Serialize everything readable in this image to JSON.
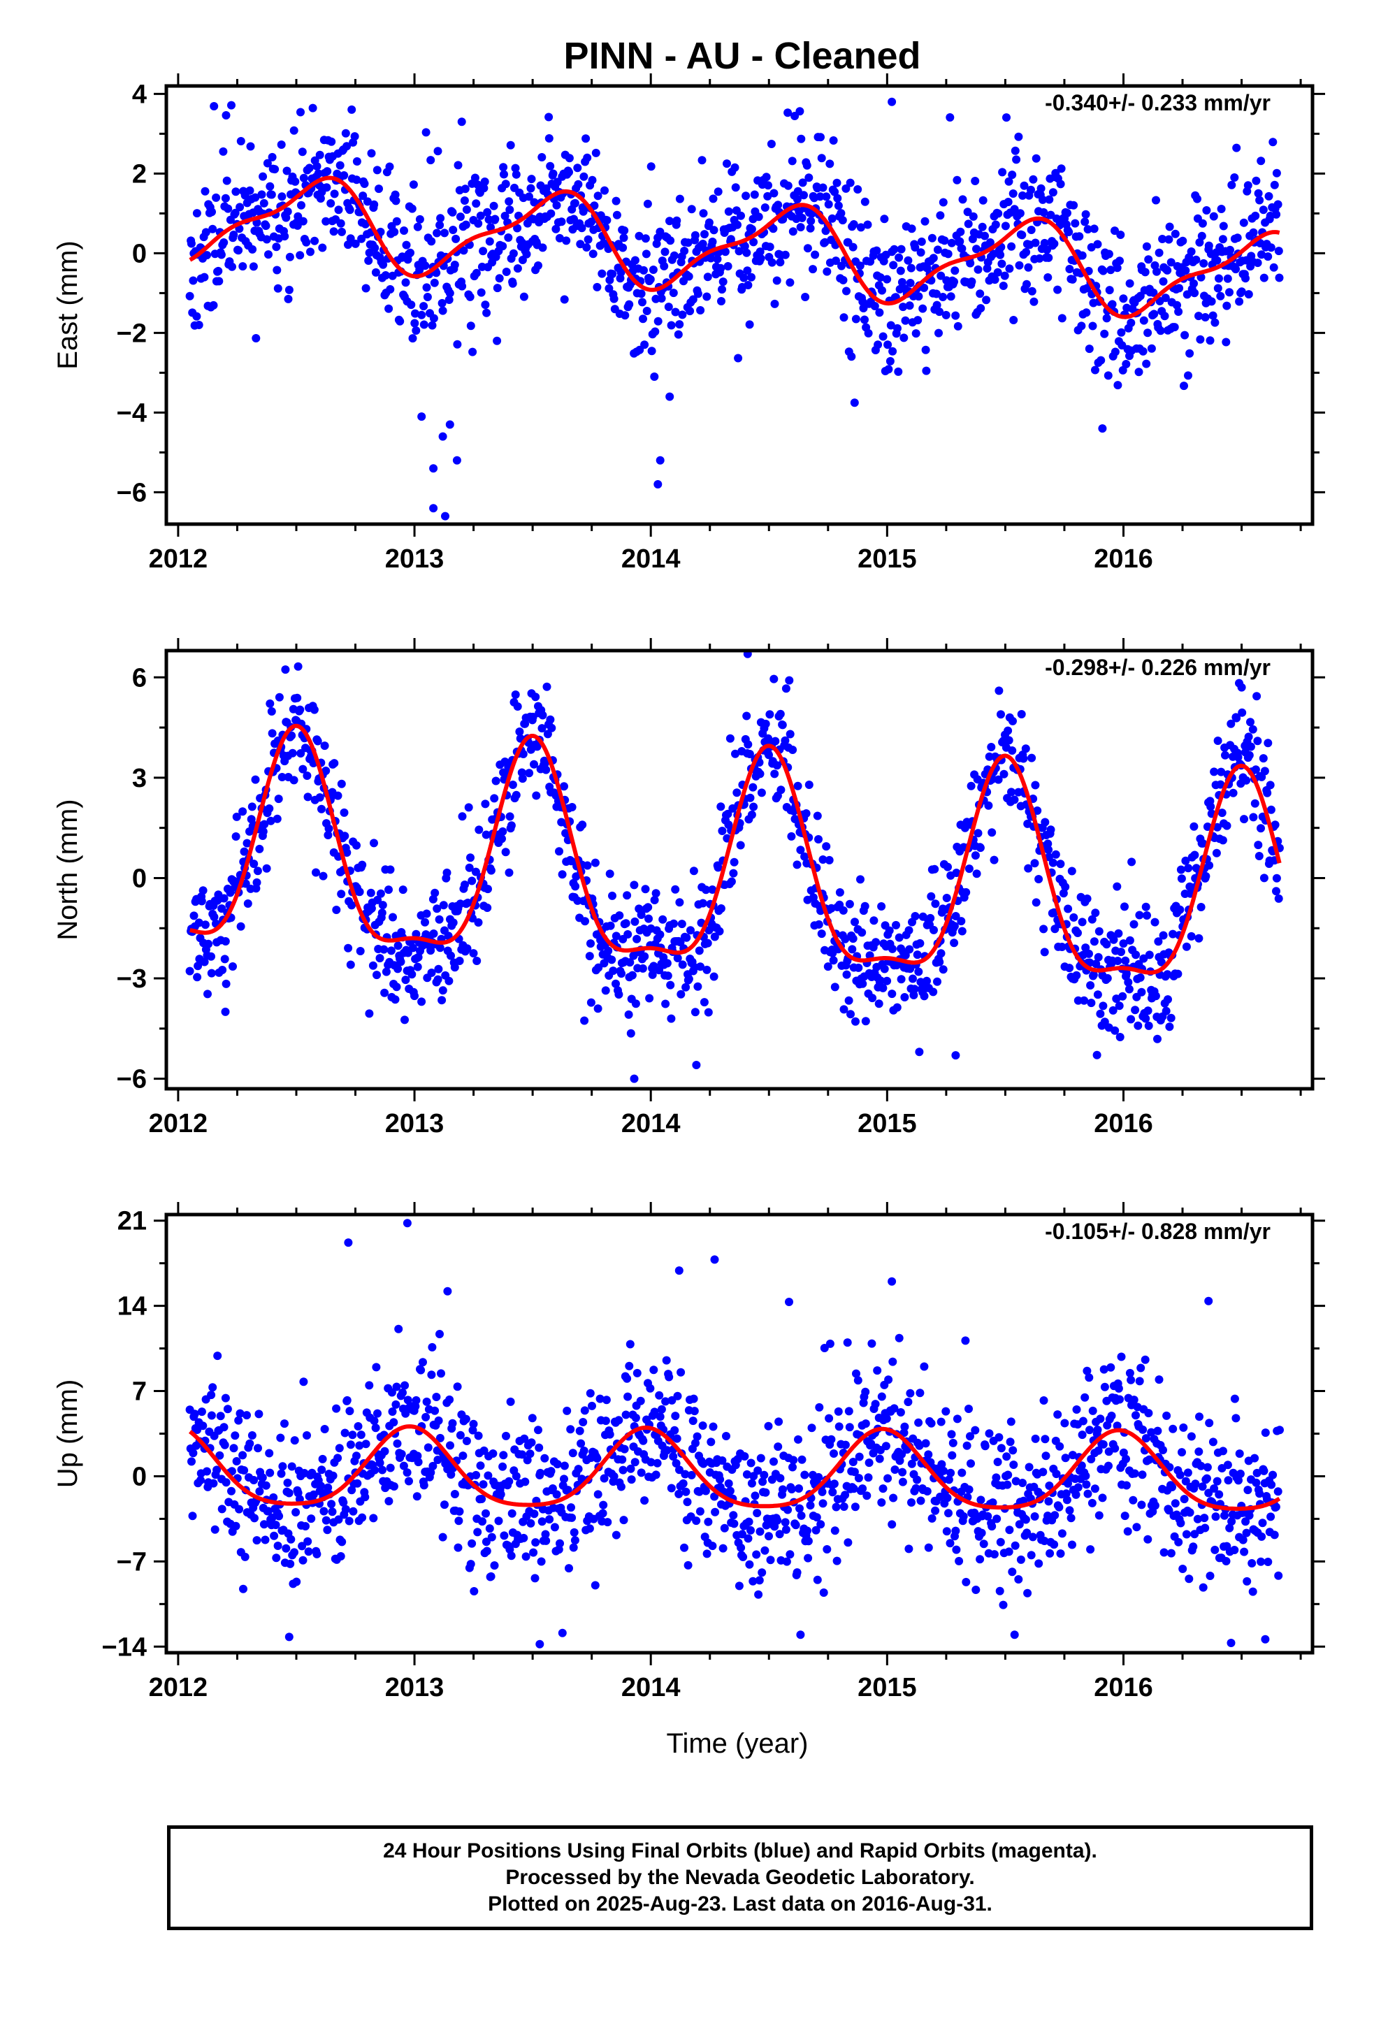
{
  "title": "PINN  - AU - Cleaned",
  "colors": {
    "final_orbits": "#0000ff",
    "rapid_orbits": "#ff00ff",
    "model_fit": "#ff0000",
    "frame": "#000000"
  },
  "chart_data": [
    {
      "type": "scatter",
      "component": "East",
      "ylabel": "East (mm)",
      "xlabel": "",
      "rate_text": "-0.340+/- 0.233 mm/yr",
      "xlim": [
        2011.95,
        2016.8
      ],
      "ylim": [
        -6.8,
        4.2
      ],
      "xticks": [
        2012,
        2013,
        2014,
        2015,
        2016
      ],
      "xtick_labels": [
        "2012",
        "2013",
        "2014",
        "2015",
        "2016"
      ],
      "yticks": [
        -6,
        -4,
        -2,
        0,
        2,
        4
      ],
      "ytick_labels": [
        "−6",
        "−4",
        "−2",
        "0",
        "2",
        "4"
      ],
      "data_range": [
        2012.05,
        2016.66
      ],
      "model": {
        "a": 0.95,
        "b": -0.34,
        "ann_amp": 1.0,
        "ann_phase": 2012.57,
        "semi_amp": 0.35,
        "semi_phase": 2012.2
      },
      "scatter": {
        "n": 1350,
        "sigma": 0.95,
        "seed": 11,
        "outliers": [
          [
            2013.03,
            -4.1
          ],
          [
            2013.08,
            -5.4
          ],
          [
            2013.12,
            -4.6
          ],
          [
            2013.15,
            -4.3
          ],
          [
            2013.18,
            -5.2
          ],
          [
            2013.08,
            -6.4
          ],
          [
            2013.13,
            -6.6
          ],
          [
            2014.04,
            -5.2
          ],
          [
            2014.03,
            -5.8
          ],
          [
            2014.08,
            -3.6
          ],
          [
            2015.02,
            3.8
          ],
          [
            2013.2,
            3.3
          ]
        ]
      },
      "legend": "none",
      "grid": false
    },
    {
      "type": "scatter",
      "component": "North",
      "ylabel": "North (mm)",
      "xlabel": "",
      "rate_text": "-0.298+/- 0.226 mm/yr",
      "xlim": [
        2011.95,
        2016.8
      ],
      "ylim": [
        -6.3,
        6.8
      ],
      "xticks": [
        2012,
        2013,
        2014,
        2015,
        2016
      ],
      "xtick_labels": [
        "2012",
        "2013",
        "2014",
        "2015",
        "2016"
      ],
      "yticks": [
        -6,
        -3,
        0,
        3,
        6
      ],
      "ytick_labels": [
        "−6",
        "−3",
        "0",
        "3",
        "6"
      ],
      "data_range": [
        2012.05,
        2016.66
      ],
      "model": {
        "a": 0.6,
        "b": -0.298,
        "ann_amp": 3.1,
        "ann_phase": 2012.5,
        "semi_amp": 1.0,
        "semi_phase": 2012.5
      },
      "scatter": {
        "n": 1350,
        "sigma": 0.95,
        "seed": 23,
        "outliers": [
          [
            2012.2,
            -4.0
          ],
          [
            2013.93,
            -6.0
          ],
          [
            2014.41,
            6.7
          ],
          [
            2015.29,
            -5.3
          ],
          [
            2016.5,
            5.7
          ]
        ]
      },
      "legend": "none",
      "grid": false
    },
    {
      "type": "scatter",
      "component": "Up",
      "ylabel": "Up (mm)",
      "xlabel": "Time (year)",
      "rate_text": "-0.105+/- 0.828 mm/yr",
      "xlim": [
        2011.95,
        2016.8
      ],
      "ylim": [
        -14.5,
        21.5
      ],
      "xticks": [
        2012,
        2013,
        2014,
        2015,
        2016
      ],
      "xtick_labels": [
        "2012",
        "2013",
        "2014",
        "2015",
        "2016"
      ],
      "yticks": [
        -14,
        -7,
        0,
        7,
        14,
        21
      ],
      "ytick_labels": [
        "−14",
        "−7",
        "0",
        "7",
        "14",
        "21"
      ],
      "data_range": [
        2012.05,
        2016.66
      ],
      "model": {
        "a": 0.4,
        "b": -0.105,
        "ann_amp": 3.2,
        "ann_phase": 2012.98,
        "semi_amp": 0.6,
        "semi_phase": 2012.98
      },
      "scatter": {
        "n": 1350,
        "sigma": 3.3,
        "seed": 37,
        "outliers": [
          [
            2012.97,
            20.8
          ],
          [
            2012.72,
            19.2
          ],
          [
            2014.27,
            17.8
          ],
          [
            2014.12,
            16.9
          ],
          [
            2015.02,
            16.0
          ],
          [
            2013.14,
            15.2
          ],
          [
            2016.36,
            14.4
          ],
          [
            2013.53,
            -13.8
          ],
          [
            2012.47,
            -13.2
          ],
          [
            2016.6,
            -13.4
          ]
        ]
      },
      "legend": "none",
      "grid": false
    }
  ],
  "footer": {
    "line1": "24 Hour Positions Using Final Orbits (blue) and Rapid Orbits (magenta).",
    "line2": "Processed by the Nevada Geodetic Laboratory.",
    "line3": "Plotted on 2025-Aug-23. Last data on 2016-Aug-31."
  }
}
